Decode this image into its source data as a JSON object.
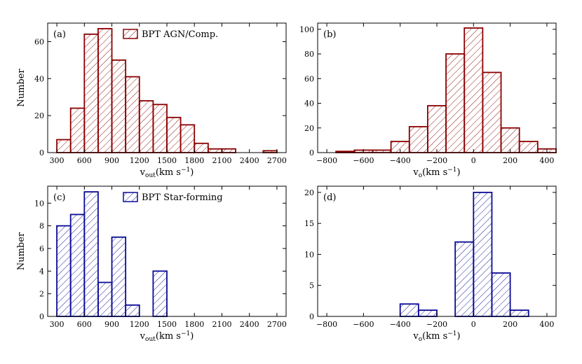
{
  "colors": {
    "agn": "#8b0000",
    "sf": "#0a0a96",
    "axis": "#000000",
    "background": "#ffffff"
  },
  "chart_data": [
    {
      "type": "bar",
      "panel_label": "(a)",
      "legend": "BPT AGN/Comp.",
      "legend_position": "top-right",
      "xlabel_main": "v",
      "xlabel_sub": "out",
      "xlabel_unit_pre": "(km s",
      "xlabel_unit_exp": "−1",
      "xlabel_unit_post": ")",
      "ylabel": "Number",
      "xlim": [
        200,
        2800
      ],
      "ylim": [
        0,
        70
      ],
      "xticks": [
        300,
        600,
        900,
        1200,
        1500,
        1800,
        2100,
        2400,
        2700
      ],
      "yticks": [
        0,
        20,
        40,
        60
      ],
      "bin_width": 150,
      "bin_starts": [
        300,
        450,
        600,
        750,
        900,
        1050,
        1200,
        1350,
        1500,
        1650,
        1800,
        1950,
        2100,
        2550
      ],
      "values": [
        7,
        24,
        64,
        67,
        50,
        41,
        28,
        26,
        19,
        15,
        5,
        2,
        2,
        1
      ],
      "color_key": "agn"
    },
    {
      "type": "bar",
      "panel_label": "(b)",
      "xlabel_main": "v",
      "xlabel_sub": "o",
      "xlabel_unit_pre": "(km s",
      "xlabel_unit_exp": "−1",
      "xlabel_unit_post": ")",
      "ylabel": "",
      "xlim": [
        -850,
        450
      ],
      "ylim": [
        0,
        105
      ],
      "xticks": [
        -800,
        -600,
        -400,
        -200,
        0,
        200,
        400
      ],
      "xtick_labels": [
        "−800",
        "−600",
        "−400",
        "−200",
        "0",
        "200",
        "400"
      ],
      "yticks": [
        0,
        20,
        40,
        60,
        80,
        100
      ],
      "bin_width": 100,
      "bin_starts": [
        -750,
        -650,
        -550,
        -450,
        -350,
        -250,
        -150,
        -50,
        50,
        150,
        250,
        350
      ],
      "values": [
        1,
        2,
        2,
        9,
        21,
        38,
        80,
        101,
        65,
        20,
        9,
        3
      ],
      "color_key": "agn"
    },
    {
      "type": "bar",
      "panel_label": "(c)",
      "legend": "BPT Star-forming",
      "legend_position": "top-right",
      "xlabel_main": "v",
      "xlabel_sub": "out",
      "xlabel_unit_pre": "(km s",
      "xlabel_unit_exp": "−1",
      "xlabel_unit_post": ")",
      "ylabel": "Number",
      "xlim": [
        200,
        2800
      ],
      "ylim": [
        0,
        11.5
      ],
      "xticks": [
        300,
        600,
        900,
        1200,
        1500,
        1800,
        2100,
        2400,
        2700
      ],
      "yticks": [
        0,
        2,
        4,
        6,
        8,
        10
      ],
      "bin_width": 150,
      "bin_starts": [
        300,
        450,
        600,
        750,
        900,
        1050,
        1350
      ],
      "values": [
        8,
        9,
        11,
        3,
        7,
        1,
        4
      ],
      "color_key": "sf"
    },
    {
      "type": "bar",
      "panel_label": "(d)",
      "xlabel_main": "v",
      "xlabel_sub": "o",
      "xlabel_unit_pre": "(km s",
      "xlabel_unit_exp": "−1",
      "xlabel_unit_post": ")",
      "ylabel": "",
      "xlim": [
        -850,
        450
      ],
      "ylim": [
        0,
        21
      ],
      "xticks": [
        -800,
        -600,
        -400,
        -200,
        0,
        200,
        400
      ],
      "xtick_labels": [
        "−800",
        "−600",
        "−400",
        "−200",
        "0",
        "200",
        "400"
      ],
      "yticks": [
        0,
        5,
        10,
        15,
        20
      ],
      "bin_width": 100,
      "bin_starts": [
        -400,
        -300,
        -100,
        0,
        100,
        200
      ],
      "values": [
        2,
        1,
        12,
        20,
        7,
        1
      ],
      "color_key": "sf"
    }
  ]
}
